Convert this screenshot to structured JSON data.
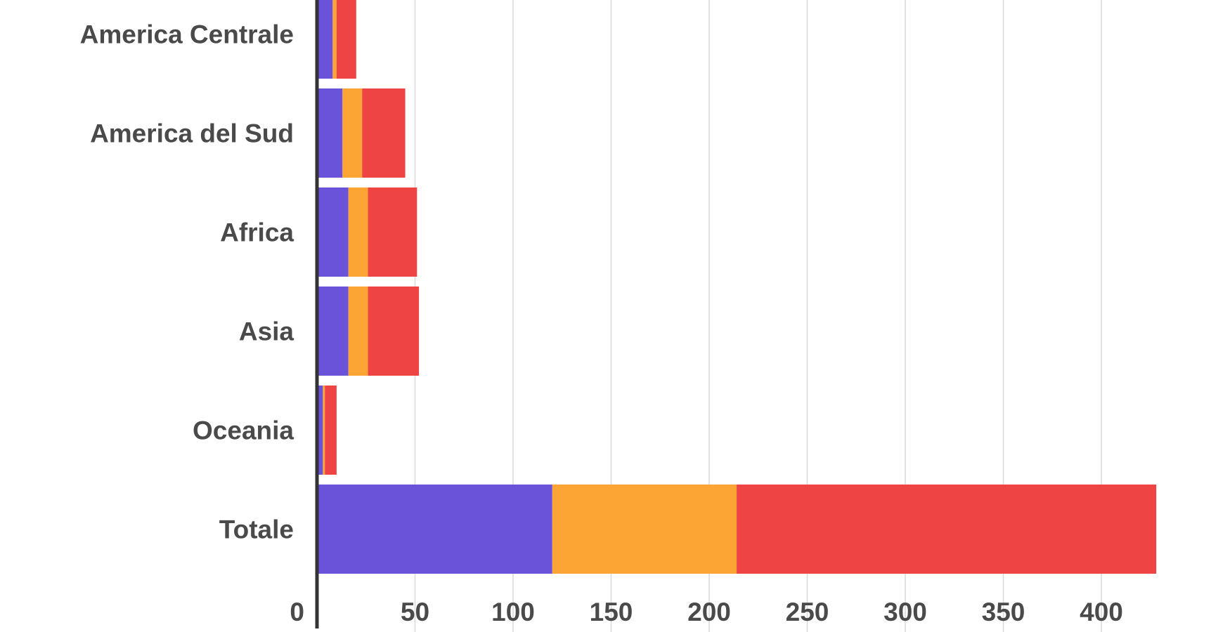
{
  "chart_data": {
    "type": "bar",
    "orientation": "horizontal",
    "stacked": true,
    "title": "",
    "xlabel": "",
    "ylabel": "",
    "categories": [
      "America Centrale",
      "America del Sud",
      "Africa",
      "Asia",
      "Oceania",
      "Totale"
    ],
    "series": [
      {
        "color": "#6a52d9",
        "values": [
          8,
          13,
          16,
          16,
          3,
          120
        ]
      },
      {
        "color": "#fca535",
        "values": [
          2,
          10,
          10,
          10,
          1,
          94
        ]
      },
      {
        "color": "#ef4444",
        "values": [
          10,
          22,
          25,
          26,
          6,
          214
        ]
      }
    ],
    "xlim": [
      0,
      428
    ],
    "xticks": [
      0,
      50,
      100,
      150,
      200,
      250,
      300,
      350,
      400
    ],
    "grid": true,
    "legend": "none"
  }
}
